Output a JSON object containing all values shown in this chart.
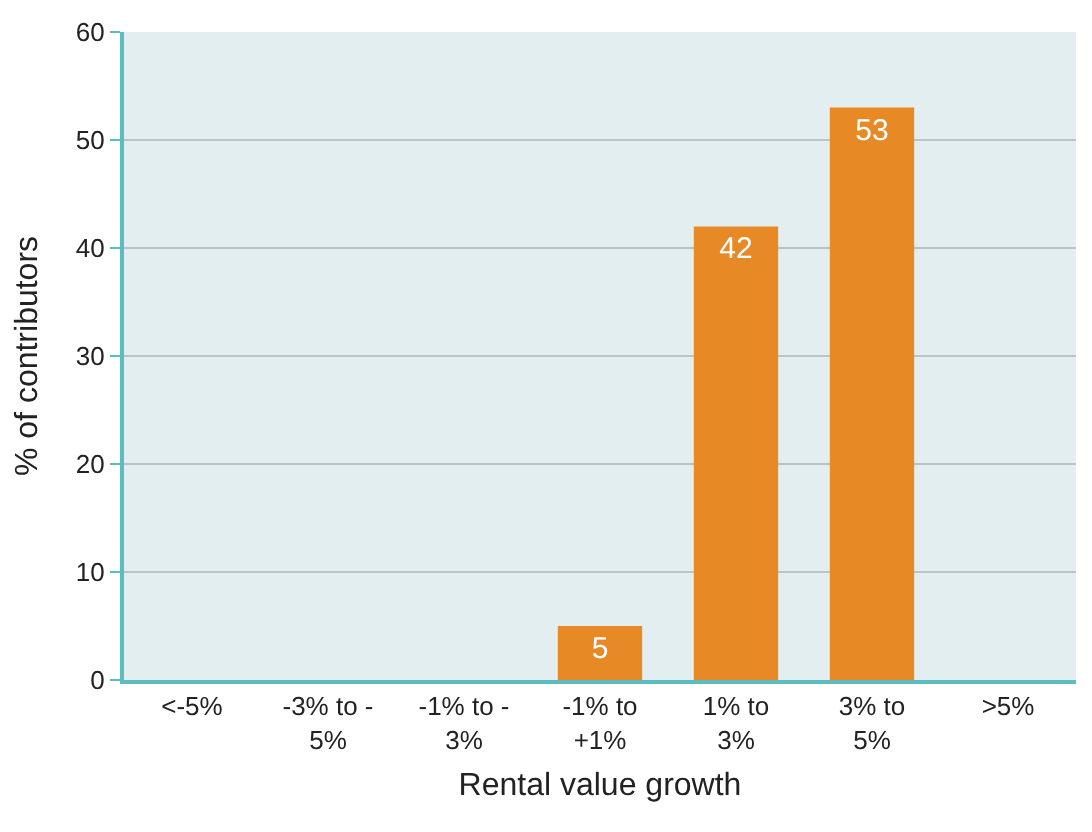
{
  "chart_data": {
    "type": "bar",
    "xlabel": "Rental value growth",
    "ylabel": "% of contributors",
    "categories": [
      "<-5%",
      "-3% to -\n5%",
      "-1% to -\n3%",
      "-1% to\n+1%",
      "1% to\n3%",
      "3% to\n5%",
      ">5%"
    ],
    "values": [
      0,
      0,
      0,
      5,
      42,
      53,
      0
    ],
    "value_labels": [
      null,
      null,
      null,
      "5",
      "42",
      "53",
      null
    ],
    "color": "#e78a26",
    "ylim": [
      0,
      60
    ],
    "yticks": [
      0,
      10,
      20,
      30,
      40,
      50,
      60
    ],
    "grid": "y",
    "legend": false
  }
}
